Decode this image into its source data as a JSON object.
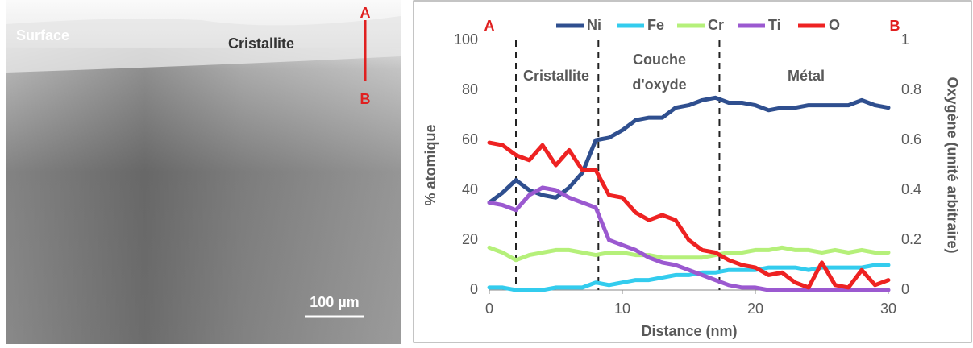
{
  "image": {
    "labels": [
      "Surface",
      "Cristallite",
      "A",
      "B"
    ],
    "scale_bar": "100 µm"
  },
  "chart_data": {
    "type": "line",
    "corner_labels": [
      "A",
      "B"
    ],
    "xlabel": "Distance (nm)",
    "ylabel": "% atomique",
    "y2label": "Oxygène (unité arbitraire)",
    "regions": [
      "Cristallite",
      "Couche",
      "d'oxyde",
      "Métal"
    ],
    "vlines": [
      2,
      8.2,
      17.3
    ],
    "x": [
      0,
      1,
      2,
      3,
      4,
      5,
      6,
      7,
      8,
      9,
      10,
      11,
      12,
      13,
      14,
      15,
      16,
      17,
      18,
      19,
      20,
      21,
      22,
      23,
      24,
      25,
      26,
      27,
      28,
      29,
      30
    ],
    "xlim": [
      0,
      30
    ],
    "xticks": [
      0,
      10,
      20,
      30
    ],
    "ylim": [
      0,
      100
    ],
    "yticks": [
      0,
      20,
      40,
      60,
      80,
      100
    ],
    "y2lim": [
      0,
      1
    ],
    "y2ticks": [
      0,
      0.2,
      0.4,
      0.6,
      0.8,
      1
    ],
    "series": [
      {
        "name": "Ni",
        "color": "#2f4f8f",
        "values": [
          35,
          39,
          44,
          40,
          38,
          37,
          41,
          47,
          60,
          61,
          64,
          68,
          69,
          69,
          73,
          74,
          76,
          77,
          75,
          75,
          74,
          72,
          73,
          73,
          74,
          74,
          74,
          74,
          76,
          74,
          73
        ]
      },
      {
        "name": "Fe",
        "color": "#33ccee",
        "values": [
          1,
          1,
          0,
          0,
          0,
          1,
          1,
          1,
          3,
          2,
          3,
          4,
          4,
          5,
          6,
          6,
          7,
          7,
          8,
          8,
          8,
          9,
          9,
          9,
          8,
          9,
          9,
          9,
          9,
          10,
          10
        ]
      },
      {
        "name": "Cr",
        "color": "#b5f07a",
        "values": [
          17,
          15,
          12,
          14,
          15,
          16,
          16,
          15,
          14,
          15,
          15,
          14,
          14,
          13,
          13,
          13,
          13,
          14,
          15,
          15,
          16,
          16,
          17,
          16,
          16,
          15,
          16,
          15,
          16,
          15,
          15
        ]
      },
      {
        "name": "Ti",
        "color": "#9b59d0",
        "values": [
          35,
          34,
          32,
          38,
          41,
          40,
          37,
          35,
          33,
          20,
          18,
          16,
          13,
          11,
          10,
          8,
          6,
          4,
          2,
          1,
          1,
          0,
          0,
          0,
          0,
          0,
          0,
          0,
          0,
          0,
          0
        ]
      },
      {
        "name": "O",
        "color": "#ee2222",
        "axis": "y2",
        "values": [
          0.59,
          0.58,
          0.54,
          0.52,
          0.58,
          0.5,
          0.56,
          0.48,
          0.48,
          0.38,
          0.37,
          0.31,
          0.28,
          0.3,
          0.28,
          0.2,
          0.16,
          0.15,
          0.12,
          0.1,
          0.09,
          0.06,
          0.07,
          0.03,
          0.01,
          0.11,
          0.02,
          0.01,
          0.08,
          0.02,
          0.04
        ]
      }
    ]
  }
}
